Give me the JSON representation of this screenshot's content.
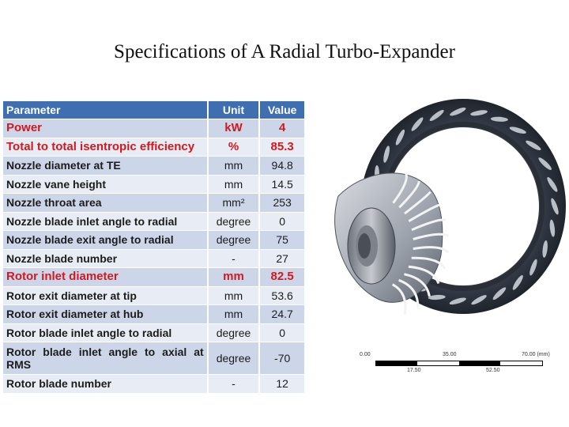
{
  "title": "Specifications of A Radial Turbo-Expander",
  "table": {
    "headers": {
      "parameter": "Parameter",
      "unit": "Unit",
      "value": "Value"
    },
    "rows": [
      {
        "parameter": "Power",
        "unit": "kW",
        "value": "4",
        "highlight": true
      },
      {
        "parameter": "Total to total isentropic efficiency",
        "unit": "%",
        "value": "85.3",
        "highlight": true
      },
      {
        "parameter": "Nozzle diameter at TE",
        "unit": "mm",
        "value": "94.8",
        "highlight": false
      },
      {
        "parameter": "Nozzle vane height",
        "unit": "mm",
        "value": "14.5",
        "highlight": false
      },
      {
        "parameter": "Nozzle throat area",
        "unit": "mm²",
        "value": "253",
        "highlight": false
      },
      {
        "parameter": "Nozzle blade inlet angle to radial",
        "unit": "degree",
        "value": "0",
        "highlight": false
      },
      {
        "parameter": "Nozzle blade exit angle to radial",
        "unit": "degree",
        "value": "75",
        "highlight": false
      },
      {
        "parameter": "Nozzle blade number",
        "unit": "-",
        "value": "27",
        "highlight": false
      },
      {
        "parameter": "Rotor inlet diameter",
        "unit": "mm",
        "value": "82.5",
        "highlight": true
      },
      {
        "parameter": "Rotor exit diameter at tip",
        "unit": "mm",
        "value": "53.6",
        "highlight": false
      },
      {
        "parameter": "Rotor exit diameter at hub",
        "unit": "mm",
        "value": "24.7",
        "highlight": false
      },
      {
        "parameter": "Rotor blade inlet angle to radial",
        "unit": "degree",
        "value": "0",
        "highlight": false
      },
      {
        "parameter": "Rotor blade inlet angle to axial at RMS",
        "unit": "degree",
        "value": "-70",
        "highlight": false
      },
      {
        "parameter": "Rotor blade number",
        "unit": "-",
        "value": "12",
        "highlight": false
      }
    ]
  },
  "scale_bar": {
    "top_labels": [
      "0.00",
      "35.00",
      "70.00 (mm)"
    ],
    "bottom_labels": [
      "17.50",
      "52.50"
    ]
  }
}
